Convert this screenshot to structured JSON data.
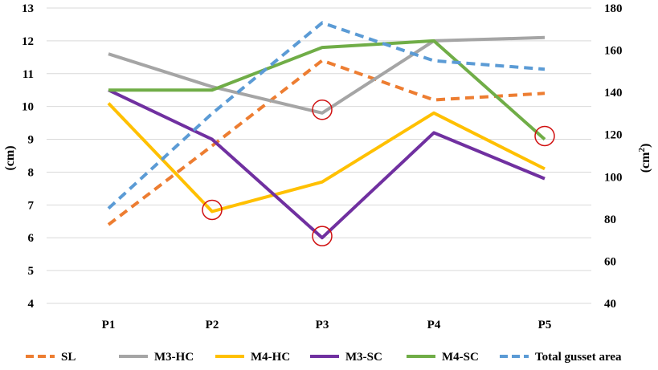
{
  "chart_data": {
    "type": "line",
    "categories": [
      "P1",
      "P2",
      "P3",
      "P4",
      "P5"
    ],
    "y_left": {
      "label": "(cm)",
      "min": 4,
      "max": 13,
      "ticks": [
        4,
        5,
        6,
        7,
        8,
        9,
        10,
        11,
        12,
        13
      ]
    },
    "y_right": {
      "label_base": "(cm",
      "label_sup": "2",
      "label_close": ")",
      "min": 40,
      "max": 180,
      "ticks": [
        40,
        60,
        80,
        100,
        120,
        140,
        160,
        180
      ]
    },
    "grid": "horizontal",
    "legend_position": "bottom",
    "series": [
      {
        "name": "SL",
        "axis": "left",
        "dashed": true,
        "color": "#ED7D31",
        "values": [
          6.4,
          8.8,
          11.4,
          10.2,
          10.4
        ]
      },
      {
        "name": "M3-HC",
        "axis": "left",
        "dashed": false,
        "color": "#A5A5A5",
        "values": [
          11.6,
          10.6,
          9.8,
          12.0,
          12.1
        ]
      },
      {
        "name": "M4-HC",
        "axis": "left",
        "dashed": false,
        "color": "#FFC000",
        "values": [
          10.1,
          6.8,
          7.7,
          9.8,
          8.1
        ]
      },
      {
        "name": "M3-SC",
        "axis": "left",
        "dashed": false,
        "color": "#7030A0",
        "values": [
          10.5,
          9.0,
          6.0,
          9.2,
          7.8
        ]
      },
      {
        "name": "M4-SC",
        "axis": "left",
        "dashed": false,
        "color": "#70AD47",
        "values": [
          10.5,
          10.5,
          11.8,
          12.0,
          9.0
        ]
      },
      {
        "name": "Total gusset area",
        "axis": "right",
        "dashed": true,
        "color": "#5B9BD5",
        "values": [
          85,
          130,
          173,
          155,
          151
        ]
      }
    ],
    "highlights": [
      {
        "category": "P2",
        "axis": "left",
        "value": 6.85
      },
      {
        "category": "P3",
        "axis": "left",
        "value": 6.05
      },
      {
        "category": "P3",
        "axis": "left",
        "value": 9.9
      },
      {
        "category": "P5",
        "axis": "left",
        "value": 9.1
      }
    ],
    "colors": {
      "grid": "#d9d9d9",
      "highlight": "#d01010"
    }
  }
}
